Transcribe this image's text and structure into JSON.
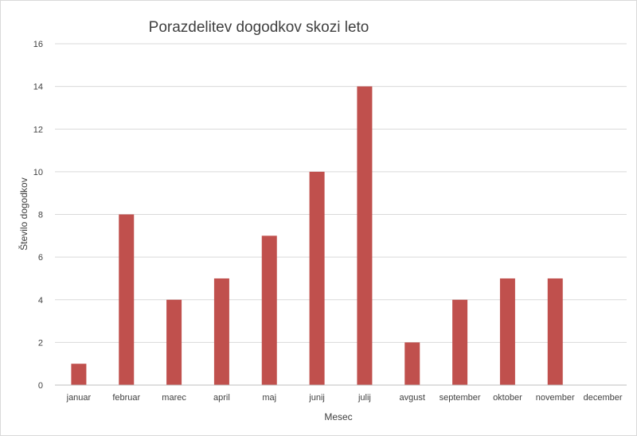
{
  "chart_data": {
    "type": "bar",
    "title": "Porazdelitev dogodkov skozi leto",
    "xlabel": "Mesec",
    "ylabel": "Število dogodkov",
    "categories": [
      "januar",
      "februar",
      "marec",
      "april",
      "maj",
      "junij",
      "julij",
      "avgust",
      "september",
      "oktober",
      "november",
      "december"
    ],
    "values": [
      1,
      8,
      4,
      5,
      7,
      10,
      14,
      2,
      4,
      5,
      5,
      0
    ],
    "ylim": [
      0,
      16
    ],
    "yticks": [
      "0",
      "2",
      "4",
      "6",
      "8",
      "10",
      "12",
      "14",
      "16"
    ],
    "grid": true,
    "legend": "none",
    "bar_color": "#c0504d"
  }
}
